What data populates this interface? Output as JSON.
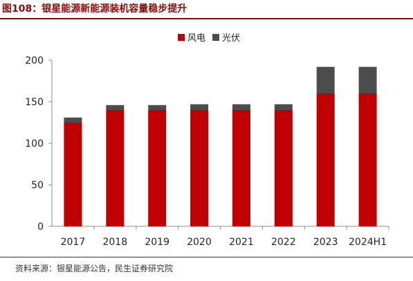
{
  "figure_title": "图108：银星能源新能源装机容量稳步提升",
  "source_note": "资料来源：银星能源公告，民生证券研究院",
  "chart_data": {
    "type": "bar",
    "stacked": true,
    "categories": [
      "2017",
      "2018",
      "2019",
      "2020",
      "2021",
      "2022",
      "2023",
      "2024H1"
    ],
    "series": [
      {
        "name": "风电",
        "color": "#c00000",
        "values": [
          125,
          140,
          140,
          140,
          140,
          140,
          160,
          160
        ]
      },
      {
        "name": "光伏",
        "color": "#4d4d4d",
        "values": [
          6,
          6,
          6,
          7,
          7,
          7,
          32,
          32
        ]
      }
    ],
    "ylim": [
      0,
      200
    ],
    "yticks": [
      "0",
      "50",
      "100",
      "150",
      "200"
    ],
    "legend_position": "top-center",
    "grid": false
  }
}
